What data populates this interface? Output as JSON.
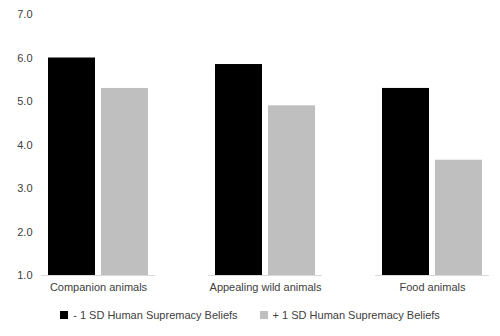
{
  "chart_data": {
    "type": "bar",
    "categories": [
      "Companion animals",
      "Appealing wild animals",
      "Food animals"
    ],
    "series": [
      {
        "name": "- 1 SD Human Supremacy Beliefs",
        "color": "#000000",
        "values": [
          6.0,
          5.85,
          5.3
        ]
      },
      {
        "name": "+ 1 SD Human Supremacy Beliefs",
        "color": "#bfbfbf",
        "values": [
          5.3,
          4.9,
          3.65
        ]
      }
    ],
    "ylim": [
      1,
      7
    ],
    "yticks": [
      1,
      2,
      3,
      4,
      5,
      6,
      7
    ],
    "grid": false,
    "legend": "bottom"
  }
}
